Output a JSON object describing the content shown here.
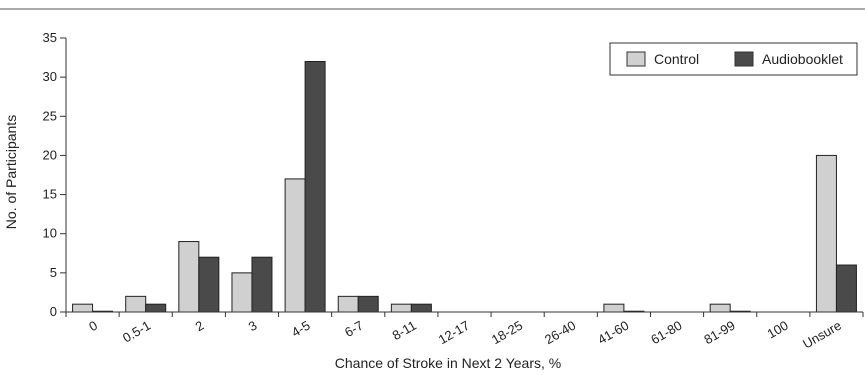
{
  "chart_data": {
    "type": "bar",
    "title": "",
    "xlabel": "Chance of Stroke in Next 2 Years, %",
    "ylabel": "No. of Participants",
    "ylim": [
      0,
      35
    ],
    "yticks": [
      0,
      5,
      10,
      15,
      20,
      25,
      30,
      35
    ],
    "grid": false,
    "legend_position": "top-right",
    "categories": [
      "0",
      "0.5-1",
      "2",
      "3",
      "4-5",
      "6-7",
      "8-11",
      "12-17",
      "18-25",
      "26-40",
      "41-60",
      "61-80",
      "81-99",
      "100",
      "Unsure"
    ],
    "series": [
      {
        "name": "Control",
        "color": "#d0d0d0",
        "values": [
          1,
          2,
          9,
          5,
          17,
          2,
          1,
          0,
          0,
          0,
          1,
          0,
          1,
          0,
          20
        ]
      },
      {
        "name": "Audiobooklet",
        "color": "#4a4a4a",
        "values": [
          0.1,
          1,
          7,
          7,
          32,
          2,
          1,
          0,
          0,
          0,
          0.1,
          0,
          0.1,
          0,
          6
        ]
      }
    ]
  }
}
